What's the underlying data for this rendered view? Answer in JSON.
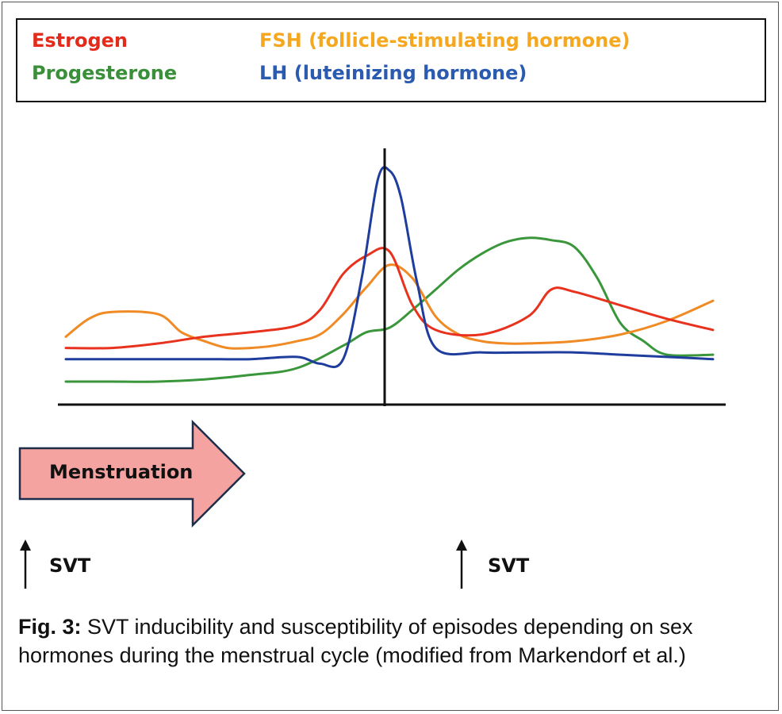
{
  "legend": {
    "estrogen": "Estrogen",
    "progesterone": "Progesterone",
    "fsh": "FSH (follicle-stimulating hormone)",
    "lh": "LH (luteinizing hormone)"
  },
  "colors": {
    "estrogen": "#e8321e",
    "progesterone": "#3a963a",
    "fsh": "#f08a24",
    "lh": "#1f3d9c",
    "arrow_fill": "#f4a3a0",
    "arrow_stroke": "#1c2e4a",
    "fsh_legend_text": "#f5a81f",
    "lh_legend_text": "#2a5bb0",
    "progesterone_legend_text": "#3a8f3a",
    "estrogen_legend_text": "#e32b1c"
  },
  "chart_data": {
    "type": "line",
    "title": "",
    "xlabel": "",
    "ylabel": "",
    "xlim": [
      0,
      28
    ],
    "ylim": [
      0,
      100
    ],
    "grid": false,
    "legend_position": "top",
    "series": [
      {
        "name": "Estrogen",
        "color": "#e8321e",
        "x": [
          0,
          2,
          4,
          6,
          8,
          10,
          11,
          12,
          13,
          14,
          15,
          16,
          18,
          20,
          21,
          22,
          24,
          26,
          28
        ],
        "y": [
          21,
          21,
          23,
          26,
          28,
          31,
          38,
          54,
          62,
          64,
          40,
          29,
          27,
          35,
          47,
          46,
          40,
          34,
          29
        ]
      },
      {
        "name": "FSH (follicle-stimulating hormone)",
        "color": "#f08a24",
        "x": [
          0,
          1,
          2,
          4,
          5,
          6,
          7,
          8,
          9,
          10,
          11,
          12,
          13,
          14,
          15,
          16,
          17,
          18,
          19,
          20,
          22,
          24,
          26,
          28
        ],
        "y": [
          26,
          34,
          37,
          36,
          28,
          24,
          21,
          21,
          22,
          24,
          27,
          36,
          48,
          58,
          52,
          35,
          27,
          24,
          23,
          23,
          24,
          27,
          33,
          42
        ]
      },
      {
        "name": "Progesterone",
        "color": "#3a963a",
        "x": [
          0,
          2,
          4,
          6,
          8,
          10,
          12,
          13,
          14,
          15,
          16,
          17,
          18,
          19,
          20,
          21,
          22,
          23,
          24,
          25,
          26,
          28
        ],
        "y": [
          6,
          6,
          6,
          7,
          9,
          12,
          22,
          28,
          30,
          38,
          47,
          56,
          63,
          68,
          70,
          69,
          66,
          52,
          32,
          24,
          18,
          18
        ]
      },
      {
        "name": "LH (luteinizing hormone)",
        "color": "#1f3d9c",
        "x": [
          0,
          2,
          4,
          6,
          8,
          10,
          11,
          12,
          12.8,
          13.5,
          14,
          14.5,
          15.2,
          16,
          18,
          20,
          22,
          24,
          26,
          28
        ],
        "y": [
          16,
          16,
          16,
          16,
          16,
          17,
          14,
          16,
          52,
          96,
          100,
          88,
          50,
          21,
          19,
          19,
          19,
          18,
          17,
          16
        ]
      }
    ]
  },
  "labels": {
    "menstruation": "Menstruation",
    "svt_1": "SVT",
    "svt_2": "SVT"
  },
  "caption": {
    "lead": "Fig. 3:",
    "text": " SVT inducibility and susceptibility of episodes depending on sex hormones during the menstrual cycle (modified from Markendorf et al.)"
  }
}
